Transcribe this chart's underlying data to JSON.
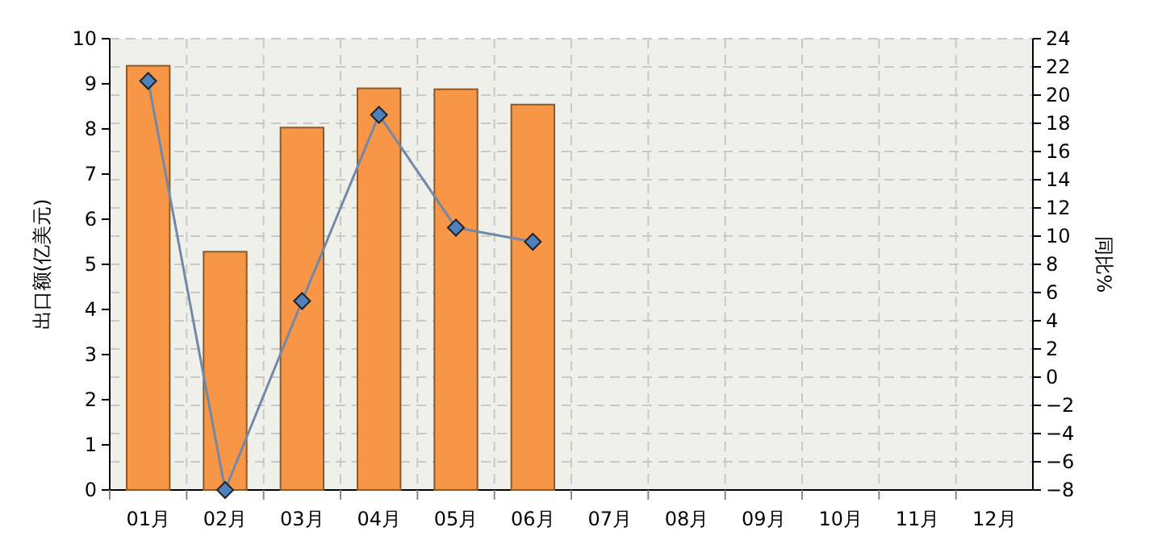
{
  "chart_data": {
    "type": "bar",
    "categories": [
      "01月",
      "02月",
      "03月",
      "04月",
      "05月",
      "06月",
      "07月",
      "08月",
      "09月",
      "10月",
      "11月",
      "12月"
    ],
    "series": [
      {
        "color": "#f79646",
        "values": [
          9.4,
          5.28,
          8.03,
          8.9,
          8.88,
          8.54,
          null,
          null,
          null,
          null,
          null,
          null
        ]
      },
      {
        "type": "line",
        "axis": "y2",
        "color": "#7388a8",
        "values": [
          21.0,
          -8.0,
          5.4,
          18.6,
          10.6,
          9.6,
          null,
          null,
          null,
          null,
          null,
          null
        ]
      }
    ],
    "ylabel": "出口额(亿美元)",
    "y2label": "同比%",
    "ylim": [
      0,
      10
    ],
    "yticks": [
      0,
      1,
      2,
      3,
      4,
      5,
      6,
      7,
      8,
      9,
      10
    ],
    "y2lim": [
      -8,
      24
    ],
    "y2ticks": [
      -8,
      -6,
      -4,
      -2,
      0,
      2,
      4,
      6,
      8,
      10,
      12,
      14,
      16,
      18,
      20,
      22,
      24
    ],
    "grid": true,
    "marker": "diamond"
  }
}
